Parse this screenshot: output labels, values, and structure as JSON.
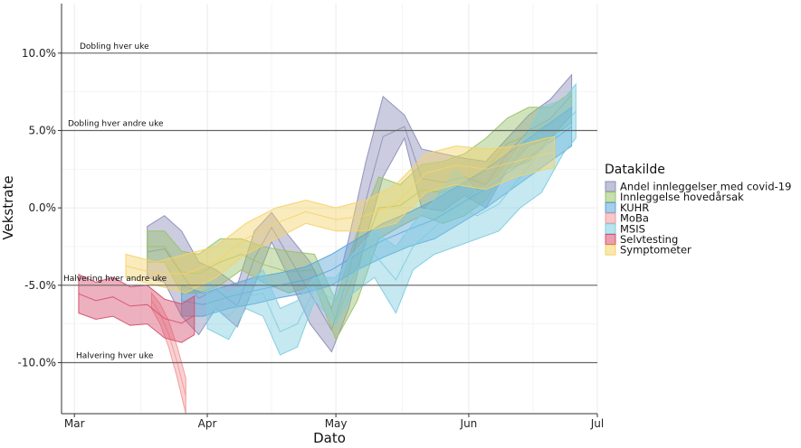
{
  "chart_data": {
    "type": "area",
    "xlabel": "Dato",
    "ylabel": "Vekstrate",
    "x_ticks": [
      "Mar",
      "Apr",
      "May",
      "Jun",
      "Jul"
    ],
    "x_tick_dates": [
      "2022-03-01",
      "2022-04-01",
      "2022-05-01",
      "2022-06-01",
      "2022-07-01"
    ],
    "xlim": [
      "2022-02-26",
      "2022-07-01"
    ],
    "y_ticks": [
      -10,
      -5,
      0,
      5,
      10
    ],
    "y_tick_labels": [
      "-10.0%",
      "-5.0%",
      "0.0%",
      "5.0%",
      "10.0%"
    ],
    "ylim": [
      -13.3,
      13.2
    ],
    "grid": true,
    "reference_lines": [
      {
        "label": "Dobling hver uke",
        "y": 10
      },
      {
        "label": "Dobling hver andre uke",
        "y": 5
      },
      {
        "label": "Halvering hver andre uke",
        "y": -5
      },
      {
        "label": "Halvering hver uke",
        "y": -10
      }
    ],
    "legend": {
      "title": "Datakilde",
      "position": "right"
    },
    "series": [
      {
        "name": "Andel innleggelser med covid-19",
        "color": "#8c8fb8",
        "x": [
          "2022-03-18",
          "2022-03-22",
          "2022-03-26",
          "2022-03-30",
          "2022-04-03",
          "2022-04-08",
          "2022-04-12",
          "2022-04-16",
          "2022-04-20",
          "2022-04-25",
          "2022-04-30",
          "2022-05-04",
          "2022-05-08",
          "2022-05-12",
          "2022-05-17",
          "2022-05-21",
          "2022-05-26",
          "2022-05-31",
          "2022-06-05",
          "2022-06-10",
          "2022-06-15",
          "2022-06-20",
          "2022-06-25"
        ],
        "low": [
          -4.5,
          -4.8,
          -7.0,
          -8.2,
          -6.5,
          -7.7,
          -5.0,
          -2.2,
          -4.5,
          -7.5,
          -9.3,
          -6.5,
          -2.0,
          2.0,
          4.5,
          0.0,
          -0.2,
          0.8,
          0.0,
          2.5,
          4.0,
          4.5,
          6.0
        ],
        "high": [
          -1.2,
          -0.5,
          -1.5,
          -3.5,
          -4.0,
          -5.0,
          -1.5,
          -0.3,
          -1.8,
          -3.5,
          -6.5,
          -2.0,
          3.0,
          7.2,
          6.0,
          3.8,
          3.5,
          3.2,
          3.0,
          4.5,
          6.0,
          7.0,
          8.6
        ]
      },
      {
        "name": "Innleggelse hovedårsak",
        "color": "#99c26a",
        "x": [
          "2022-03-18",
          "2022-03-22",
          "2022-03-26",
          "2022-03-30",
          "2022-04-04",
          "2022-04-09",
          "2022-04-14",
          "2022-04-20",
          "2022-04-26",
          "2022-05-01",
          "2022-05-06",
          "2022-05-11",
          "2022-05-16",
          "2022-05-21",
          "2022-05-26",
          "2022-05-31",
          "2022-06-05",
          "2022-06-10",
          "2022-06-15",
          "2022-06-20",
          "2022-06-25"
        ],
        "low": [
          -3.5,
          -3.5,
          -5.5,
          -5.5,
          -5.0,
          -4.0,
          -4.8,
          -5.5,
          -5.0,
          -8.5,
          -6.0,
          -2.0,
          -1.2,
          -0.5,
          -1.0,
          -0.5,
          0.5,
          2.5,
          3.0,
          4.5,
          5.5
        ],
        "high": [
          -1.5,
          -1.5,
          -2.8,
          -3.0,
          -2.0,
          -2.0,
          -2.5,
          -2.8,
          -3.0,
          -6.0,
          -1.5,
          2.0,
          1.5,
          2.8,
          3.0,
          3.5,
          4.5,
          5.8,
          6.5,
          6.5,
          7.5
        ]
      },
      {
        "name": "KUHR",
        "color": "#5aa5d8",
        "x": [
          "2022-03-26",
          "2022-03-31",
          "2022-04-06",
          "2022-04-12",
          "2022-04-18",
          "2022-04-24",
          "2022-04-30",
          "2022-05-06",
          "2022-05-12",
          "2022-05-18",
          "2022-05-24",
          "2022-05-30",
          "2022-06-05",
          "2022-06-10",
          "2022-06-15",
          "2022-06-20",
          "2022-06-25"
        ],
        "low": [
          -7.0,
          -7.0,
          -6.5,
          -6.2,
          -5.8,
          -5.5,
          -5.0,
          -4.0,
          -3.2,
          -2.5,
          -2.0,
          -1.0,
          0.0,
          1.0,
          2.0,
          3.0,
          4.0
        ],
        "high": [
          -5.0,
          -5.5,
          -5.0,
          -4.5,
          -4.2,
          -3.8,
          -3.0,
          -2.0,
          -1.0,
          -0.3,
          0.5,
          1.5,
          2.5,
          3.5,
          4.5,
          5.5,
          6.5
        ]
      },
      {
        "name": "MoBa",
        "color": "#f2999c",
        "x": [
          "2022-03-19",
          "2022-03-21",
          "2022-03-23",
          "2022-03-25",
          "2022-03-27"
        ],
        "low": [
          -6.5,
          -7.5,
          -9.0,
          -11.0,
          -13.3
        ],
        "high": [
          -5.5,
          -6.2,
          -7.3,
          -9.0,
          -11.0
        ]
      },
      {
        "name": "MSIS",
        "color": "#7fcde0",
        "x": [
          "2022-04-01",
          "2022-04-06",
          "2022-04-10",
          "2022-04-14",
          "2022-04-18",
          "2022-04-22",
          "2022-04-26",
          "2022-05-01",
          "2022-05-05",
          "2022-05-10",
          "2022-05-15",
          "2022-05-19",
          "2022-05-24",
          "2022-05-29",
          "2022-06-03",
          "2022-06-08",
          "2022-06-13",
          "2022-06-18",
          "2022-06-23",
          "2022-06-26"
        ],
        "low": [
          -7.8,
          -8.5,
          -6.5,
          -7.0,
          -9.5,
          -9.0,
          -6.0,
          -7.5,
          -5.5,
          -4.5,
          -6.8,
          -4.0,
          -3.0,
          -2.5,
          -2.0,
          -1.5,
          0.0,
          1.0,
          3.5,
          4.5
        ],
        "high": [
          -4.8,
          -5.5,
          -5.0,
          -4.0,
          -6.5,
          -6.0,
          -4.5,
          -4.5,
          -3.0,
          -1.5,
          -2.5,
          -1.0,
          0.5,
          2.5,
          1.0,
          2.0,
          4.0,
          6.5,
          7.0,
          8.0
        ]
      },
      {
        "name": "Selvtesting",
        "color": "#d6506e",
        "x": [
          "2022-03-02",
          "2022-03-06",
          "2022-03-10",
          "2022-03-14",
          "2022-03-18",
          "2022-03-22",
          "2022-03-26",
          "2022-03-29"
        ],
        "low": [
          -6.8,
          -7.2,
          -7.0,
          -7.6,
          -7.5,
          -8.4,
          -8.7,
          -8.2
        ],
        "high": [
          -4.3,
          -4.8,
          -4.5,
          -5.1,
          -5.0,
          -5.9,
          -6.2,
          -5.7
        ]
      },
      {
        "name": "Symptometer",
        "color": "#f4d36a",
        "x": [
          "2022-03-13",
          "2022-03-20",
          "2022-03-27",
          "2022-04-03",
          "2022-04-10",
          "2022-04-17",
          "2022-04-24",
          "2022-05-01",
          "2022-05-08",
          "2022-05-15",
          "2022-05-22",
          "2022-05-29",
          "2022-06-05",
          "2022-06-12",
          "2022-06-19",
          "2022-06-21"
        ],
        "low": [
          -4.5,
          -5.0,
          -5.5,
          -4.5,
          -3.0,
          -2.0,
          -1.0,
          -1.5,
          -1.5,
          -1.0,
          1.0,
          1.5,
          1.2,
          2.0,
          2.5,
          2.6
        ],
        "high": [
          -3.0,
          -3.5,
          -3.0,
          -2.5,
          -1.0,
          0.0,
          0.5,
          0.0,
          0.5,
          1.5,
          3.5,
          4.0,
          3.8,
          4.0,
          4.5,
          4.6
        ]
      }
    ]
  }
}
